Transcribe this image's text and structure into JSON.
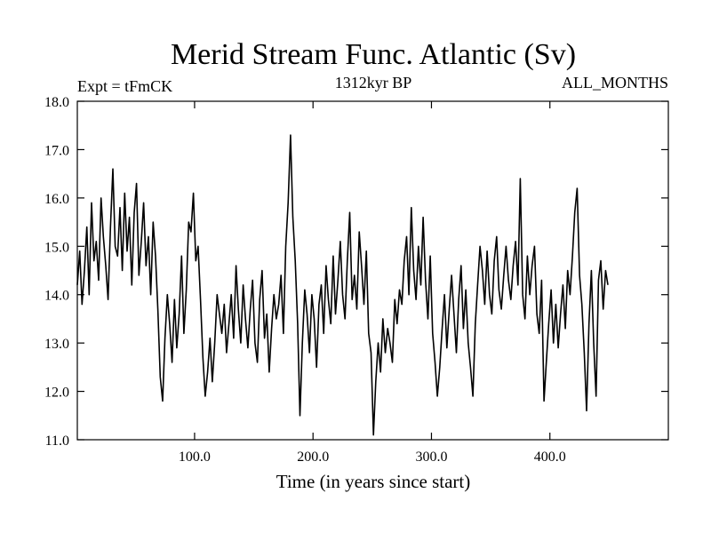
{
  "chart_data": {
    "type": "line",
    "title": "Merid Stream Func. Atlantic (Sv)",
    "subtitle_left": "Expt = tFmCK",
    "subtitle_center": "1312kyr BP",
    "subtitle_right": "ALL_MONTHS",
    "xlabel": "Time (in years since start)",
    "ylabel": "",
    "xlim": [
      1,
      500
    ],
    "ylim": [
      11.0,
      18.0
    ],
    "x_ticks": [
      {
        "value": 100,
        "label": "100.0"
      },
      {
        "value": 200,
        "label": "200.0"
      },
      {
        "value": 300,
        "label": "300.0"
      },
      {
        "value": 400,
        "label": "400.0"
      }
    ],
    "y_ticks": [
      {
        "value": 11,
        "label": "11.0"
      },
      {
        "value": 12,
        "label": "12.0"
      },
      {
        "value": 13,
        "label": "13.0"
      },
      {
        "value": 14,
        "label": "14.0"
      },
      {
        "value": 15,
        "label": "15.0"
      },
      {
        "value": 16,
        "label": "16.0"
      },
      {
        "value": 17,
        "label": "17.0"
      },
      {
        "value": 18,
        "label": "18.0"
      }
    ],
    "grid": false,
    "series": [
      {
        "name": "Merid Stream Func. Atlantic",
        "color": "#000000",
        "x_start": 1,
        "x_step": 2,
        "values": [
          14.2,
          14.9,
          13.8,
          14.5,
          15.4,
          14.0,
          15.9,
          14.7,
          15.1,
          14.3,
          16.0,
          15.2,
          14.6,
          13.9,
          15.4,
          16.6,
          15.0,
          14.8,
          15.8,
          14.5,
          16.1,
          14.9,
          15.6,
          14.2,
          15.7,
          16.3,
          14.4,
          15.1,
          15.9,
          14.6,
          15.2,
          14.0,
          15.5,
          14.8,
          13.7,
          12.3,
          11.8,
          13.1,
          14.0,
          13.4,
          12.6,
          13.9,
          12.9,
          13.6,
          14.8,
          13.2,
          14.1,
          15.5,
          15.3,
          16.1,
          14.7,
          15.0,
          13.9,
          12.7,
          11.9,
          12.4,
          13.1,
          12.2,
          13.0,
          14.0,
          13.6,
          13.2,
          13.8,
          12.8,
          13.4,
          14.0,
          13.1,
          14.6,
          13.7,
          13.0,
          14.2,
          13.5,
          12.9,
          13.7,
          14.3,
          13.0,
          12.6,
          13.9,
          14.5,
          13.1,
          13.6,
          12.4,
          13.3,
          14.0,
          13.5,
          13.8,
          14.4,
          13.2,
          15.0,
          15.9,
          17.3,
          15.6,
          14.7,
          13.4,
          11.5,
          13.0,
          14.1,
          13.6,
          12.8,
          14.0,
          13.5,
          12.5,
          13.8,
          14.2,
          13.2,
          14.6,
          13.9,
          13.4,
          14.8,
          13.6,
          14.3,
          15.1,
          14.0,
          13.5,
          14.7,
          15.7,
          13.9,
          14.4,
          13.7,
          15.3,
          14.6,
          13.8,
          14.9,
          13.2,
          12.8,
          11.1,
          12.2,
          13.0,
          12.4,
          13.5,
          12.8,
          13.3,
          13.0,
          12.6,
          13.9,
          13.4,
          14.1,
          13.8,
          14.7,
          15.2,
          14.0,
          15.8,
          14.5,
          13.9,
          15.0,
          14.2,
          15.6,
          14.3,
          13.5,
          14.8,
          13.2,
          12.6,
          11.9,
          12.5,
          13.3,
          14.0,
          12.9,
          13.7,
          14.4,
          13.6,
          12.8,
          13.9,
          14.6,
          13.3,
          14.1,
          13.0,
          12.5,
          11.9,
          13.4,
          14.2,
          15.0,
          14.5,
          13.8,
          14.9,
          14.0,
          13.6,
          14.7,
          15.2,
          14.1,
          13.7,
          14.4,
          15.0,
          14.3,
          13.9,
          14.6,
          15.1,
          14.2,
          16.4,
          14.0,
          13.5,
          14.8,
          14.0,
          14.6,
          15.0,
          13.6,
          13.2,
          14.3,
          11.8,
          12.6,
          13.4,
          14.1,
          13.0,
          13.8,
          12.9,
          13.6,
          14.2,
          13.3,
          14.5,
          14.0,
          14.8,
          15.7,
          16.2,
          14.4,
          13.8,
          12.8,
          11.6,
          13.4,
          14.5,
          13.0,
          11.9,
          14.3,
          14.7,
          13.7,
          14.5,
          14.2
        ]
      }
    ]
  }
}
